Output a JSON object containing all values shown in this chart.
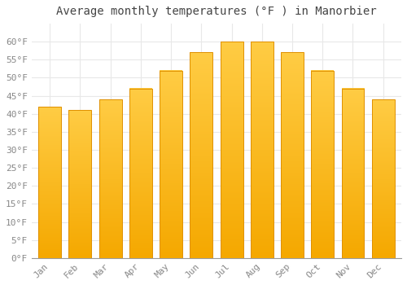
{
  "title": "Average monthly temperatures (°F ) in Manorbier",
  "months": [
    "Jan",
    "Feb",
    "Mar",
    "Apr",
    "May",
    "Jun",
    "Jul",
    "Aug",
    "Sep",
    "Oct",
    "Nov",
    "Dec"
  ],
  "values": [
    42,
    41,
    44,
    47,
    52,
    57,
    60,
    60,
    57,
    52,
    47,
    44
  ],
  "bar_color_top": "#FFCC44",
  "bar_color_bottom": "#F5A800",
  "bar_color_edge": "#E09000",
  "ylim": [
    0,
    65
  ],
  "yticks": [
    0,
    5,
    10,
    15,
    20,
    25,
    30,
    35,
    40,
    45,
    50,
    55,
    60
  ],
  "ytick_labels": [
    "0°F",
    "5°F",
    "10°F",
    "15°F",
    "20°F",
    "25°F",
    "30°F",
    "35°F",
    "40°F",
    "45°F",
    "50°F",
    "55°F",
    "60°F"
  ],
  "background_color": "#ffffff",
  "grid_color": "#e8e8e8",
  "title_fontsize": 10,
  "tick_fontsize": 8,
  "font_family": "monospace",
  "bar_width": 0.75
}
